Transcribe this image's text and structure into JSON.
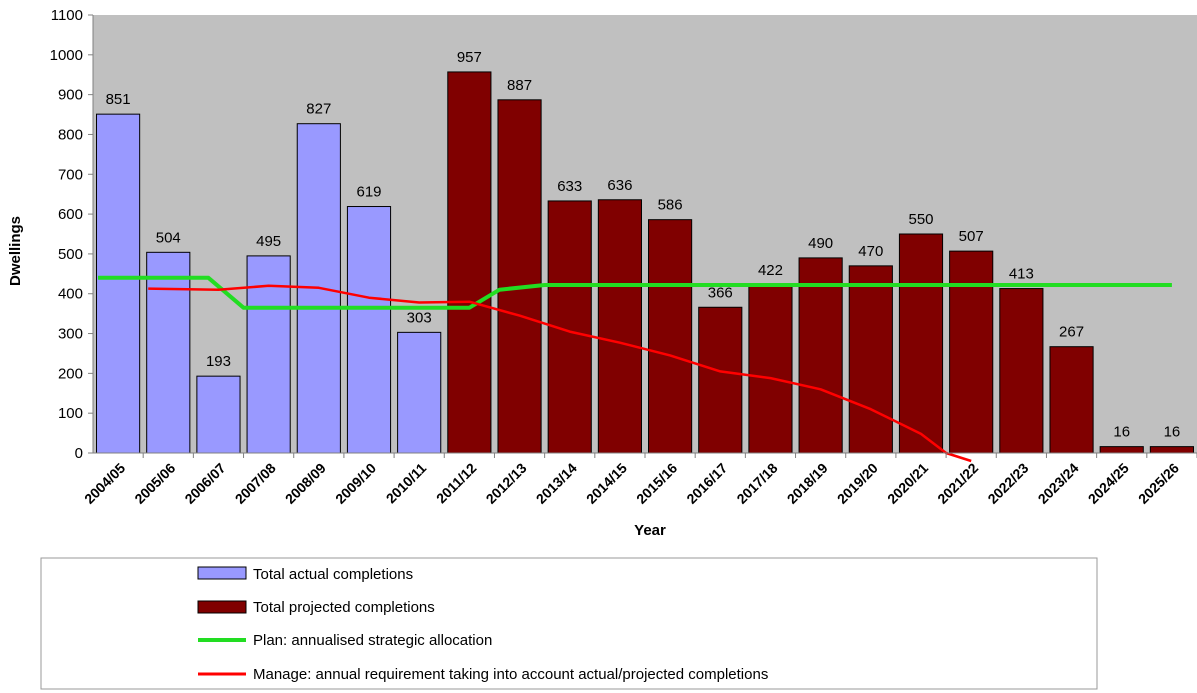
{
  "chart_data": {
    "type": "bar",
    "xlabel": "Year",
    "ylabel": "Dwellings",
    "ylim": [
      0,
      1100
    ],
    "yticks": [
      0,
      100,
      200,
      300,
      400,
      500,
      600,
      700,
      800,
      900,
      1000,
      1100
    ],
    "categories": [
      "2004/05",
      "2005/06",
      "2006/07",
      "2007/08",
      "2008/09",
      "2009/10",
      "2010/11",
      "2011/12",
      "2012/13",
      "2013/14",
      "2014/15",
      "2015/16",
      "2016/17",
      "2017/18",
      "2018/19",
      "2019/20",
      "2020/21",
      "2021/22",
      "2022/23",
      "2023/24",
      "2024/25",
      "2025/26"
    ],
    "values": [
      851,
      504,
      193,
      495,
      827,
      619,
      303,
      957,
      887,
      633,
      636,
      586,
      366,
      422,
      490,
      470,
      550,
      507,
      413,
      267,
      16,
      16
    ],
    "bar_series": [
      {
        "name": "Total actual completions",
        "color": "#9999ff",
        "start": 0,
        "end": 6
      },
      {
        "name": "Total projected completions",
        "color": "#800000",
        "start": 7,
        "end": 21
      }
    ],
    "line_series": [
      {
        "name": "Plan: annualised strategic allocation",
        "color": "#22dd22",
        "x": [
          -0.4,
          1.8,
          2.5,
          7.0,
          7.6,
          8.5,
          21.0
        ],
        "values": [
          440,
          440,
          365,
          365,
          410,
          422,
          422
        ]
      },
      {
        "name": "Manage: annual requirement taking into account actual/projected completions",
        "color": "#ff0000",
        "x": [
          0.6,
          2.0,
          3.0,
          4.0,
          5.0,
          6.0,
          7.0,
          8.0,
          9.0,
          10.0,
          11.0,
          12.0,
          13.0,
          14.0,
          15.0,
          16.0,
          16.5,
          17.0
        ],
        "values": [
          413,
          410,
          420,
          415,
          390,
          378,
          380,
          345,
          305,
          277,
          245,
          205,
          188,
          160,
          110,
          48,
          0,
          -20
        ]
      }
    ],
    "grid": false,
    "legend_position": "bottom"
  }
}
